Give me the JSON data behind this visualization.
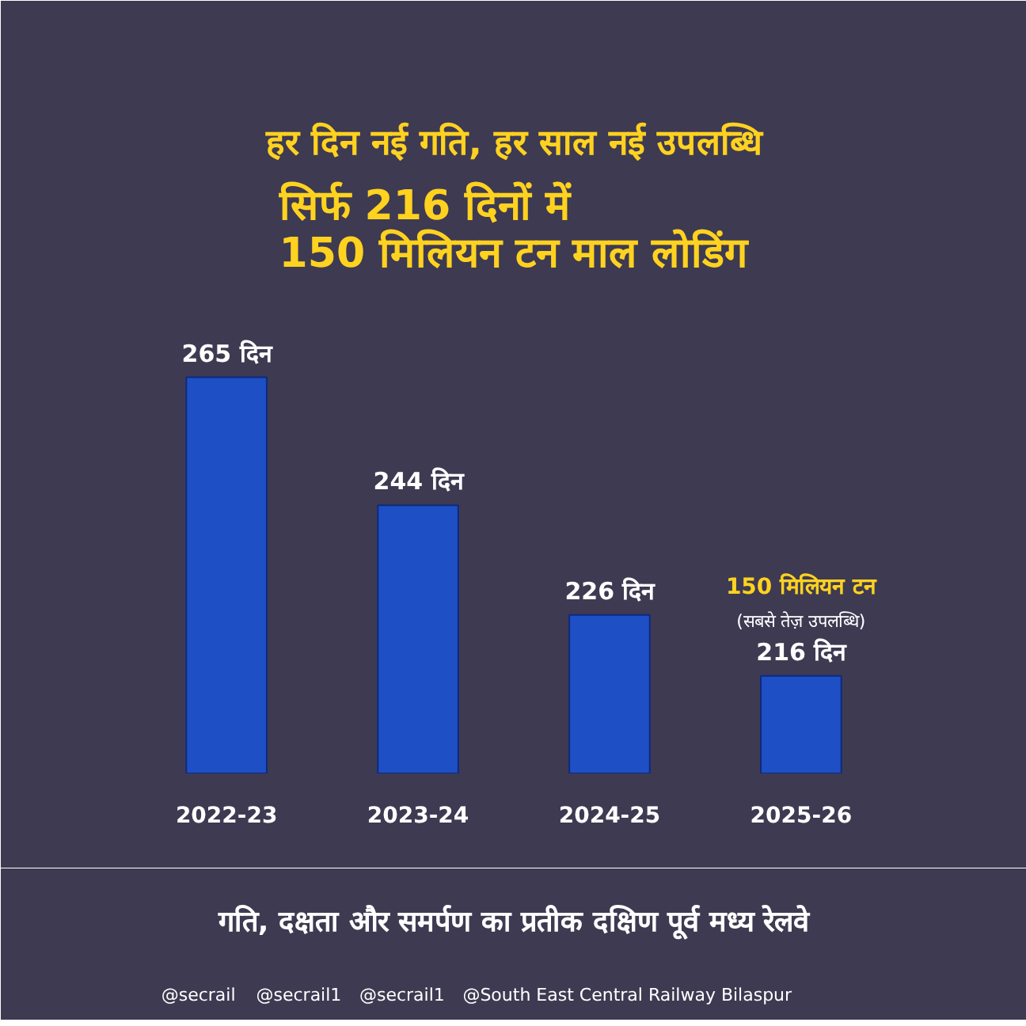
{
  "chart_data": {
    "type": "bar",
    "title": "हर दिन नई गति, हर साल नई उपलब्धि",
    "subtitle": "सिर्फ 216 दिनों में\n150 मिलियन टन माल लोडिंग",
    "categories": [
      "2022-23",
      "2023-24",
      "2024-25",
      "2025-26"
    ],
    "values": [
      265,
      244,
      226,
      216
    ],
    "value_labels": [
      "265 दिन",
      "244 दिन",
      "226 दिन",
      "216 दिन"
    ],
    "color": "#1f4fc4",
    "ylim": [
      200,
      280
    ],
    "tick_labels": "x",
    "grid": false,
    "annotations": [
      "150 मिलियन टन",
      "(सबसे तेज़ उपलब्धि)",
      "गति, दक्षता और समर्पण का प्रतीक दक्षिण पूर्व मध्य रेलवे",
      "@secrail",
      "@secrail1",
      "@secrail1",
      "@South East Central Railway Bilaspur"
    ]
  }
}
